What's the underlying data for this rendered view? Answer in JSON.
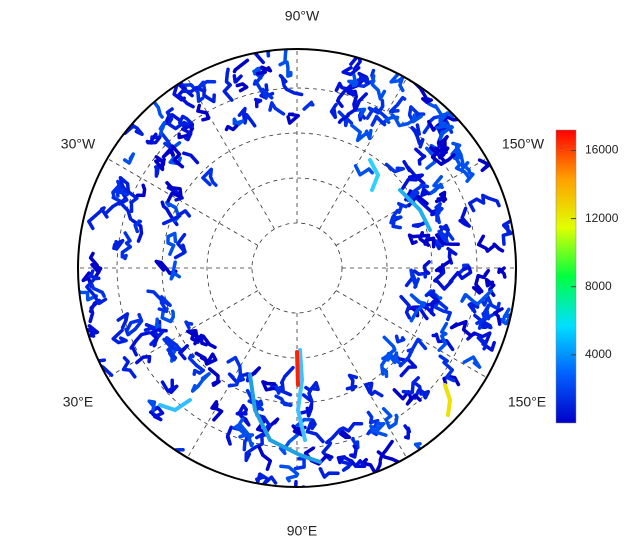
{
  "labels": {
    "top": "90°W",
    "upper_left": "30°W",
    "upper_right": "150°W",
    "lower_left": "30°E",
    "lower_right": "150°E",
    "bottom": "90°E"
  },
  "colorbar": {
    "range": [
      0,
      17200
    ],
    "ticks": [
      4000,
      8000,
      12000,
      16000
    ],
    "colors": [
      "#0000c8",
      "#0060ff",
      "#00e0ff",
      "#00ff40",
      "#e0ff00",
      "#ffa000",
      "#ff0000"
    ]
  }
}
